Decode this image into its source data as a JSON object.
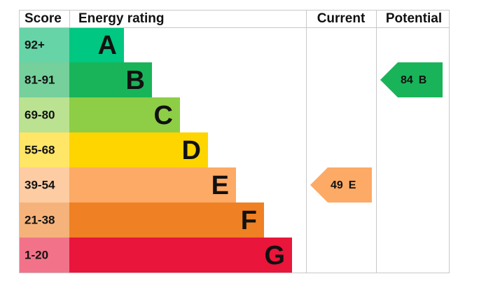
{
  "header": {
    "score": "Score",
    "rating": "Energy rating",
    "current": "Current",
    "potential": "Potential"
  },
  "bands": [
    {
      "score": "92+",
      "letter": "A",
      "color": "#00c781",
      "light": "#66d4a7"
    },
    {
      "score": "81-91",
      "letter": "B",
      "color": "#19b459",
      "light": "#75d09b"
    },
    {
      "score": "69-80",
      "letter": "C",
      "color": "#8dce46",
      "light": "#bbe291"
    },
    {
      "score": "55-68",
      "letter": "D",
      "color": "#ffd500",
      "light": "#ffe666"
    },
    {
      "score": "39-54",
      "letter": "E",
      "color": "#fcaa65",
      "light": "#fdcca3"
    },
    {
      "score": "21-38",
      "letter": "F",
      "color": "#ef8023",
      "light": "#f5b37b"
    },
    {
      "score": "1-20",
      "letter": "G",
      "color": "#e9153b",
      "light": "#f27389"
    }
  ],
  "current": {
    "value": 49,
    "rating": "E",
    "color": "#fcaa65"
  },
  "potential": {
    "value": 84,
    "rating": "B",
    "color": "#19b459"
  }
}
